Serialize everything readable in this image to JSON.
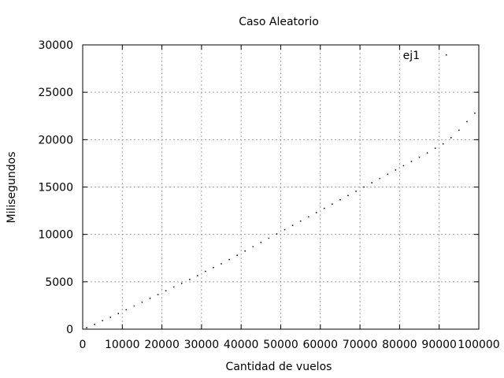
{
  "chart_data": {
    "type": "scatter",
    "title": "Caso Aleatorio",
    "xlabel": "Cantidad de vuelos",
    "ylabel": "Milisegundos",
    "xlim": [
      0,
      100000
    ],
    "ylim": [
      0,
      30000
    ],
    "xticks": [
      0,
      10000,
      20000,
      30000,
      40000,
      50000,
      60000,
      70000,
      80000,
      90000,
      100000
    ],
    "yticks": [
      0,
      5000,
      10000,
      15000,
      20000,
      25000,
      30000
    ],
    "xtick_labels": [
      "0",
      "10000",
      "20000",
      "30000",
      "40000",
      "50000",
      "60000",
      "70000",
      "80000",
      "90000",
      "100000"
    ],
    "ytick_labels": [
      "0",
      "5000",
      "10000",
      "15000",
      "20000",
      "25000",
      "30000"
    ],
    "grid": true,
    "legend_position": "top-right",
    "point_color": "#000000",
    "series": [
      {
        "name": "ej1",
        "x": [
          1000,
          3000,
          5000,
          7000,
          9000,
          11000,
          13000,
          15000,
          17000,
          19000,
          21000,
          23000,
          25000,
          27000,
          29000,
          31000,
          33000,
          35000,
          37000,
          39000,
          41000,
          43000,
          45000,
          47000,
          49000,
          51000,
          53000,
          55000,
          57000,
          59000,
          61000,
          63000,
          65000,
          67000,
          69000,
          71000,
          73000,
          75000,
          77000,
          79000,
          81000,
          83000,
          85000,
          87000,
          89000,
          91000,
          93000,
          95000,
          97000,
          99000
        ],
        "y": [
          150,
          500,
          900,
          1250,
          1650,
          2050,
          2450,
          2850,
          3250,
          3650,
          4050,
          4450,
          4850,
          5250,
          5650,
          6100,
          6500,
          6900,
          7350,
          7800,
          8250,
          8700,
          9150,
          9600,
          10050,
          10500,
          10950,
          11400,
          11850,
          12300,
          12750,
          13200,
          13650,
          14100,
          14550,
          15000,
          15450,
          15900,
          16350,
          16800,
          17250,
          17700,
          18150,
          18600,
          19100,
          19550,
          20200,
          21000,
          21900,
          22800
        ]
      }
    ]
  }
}
